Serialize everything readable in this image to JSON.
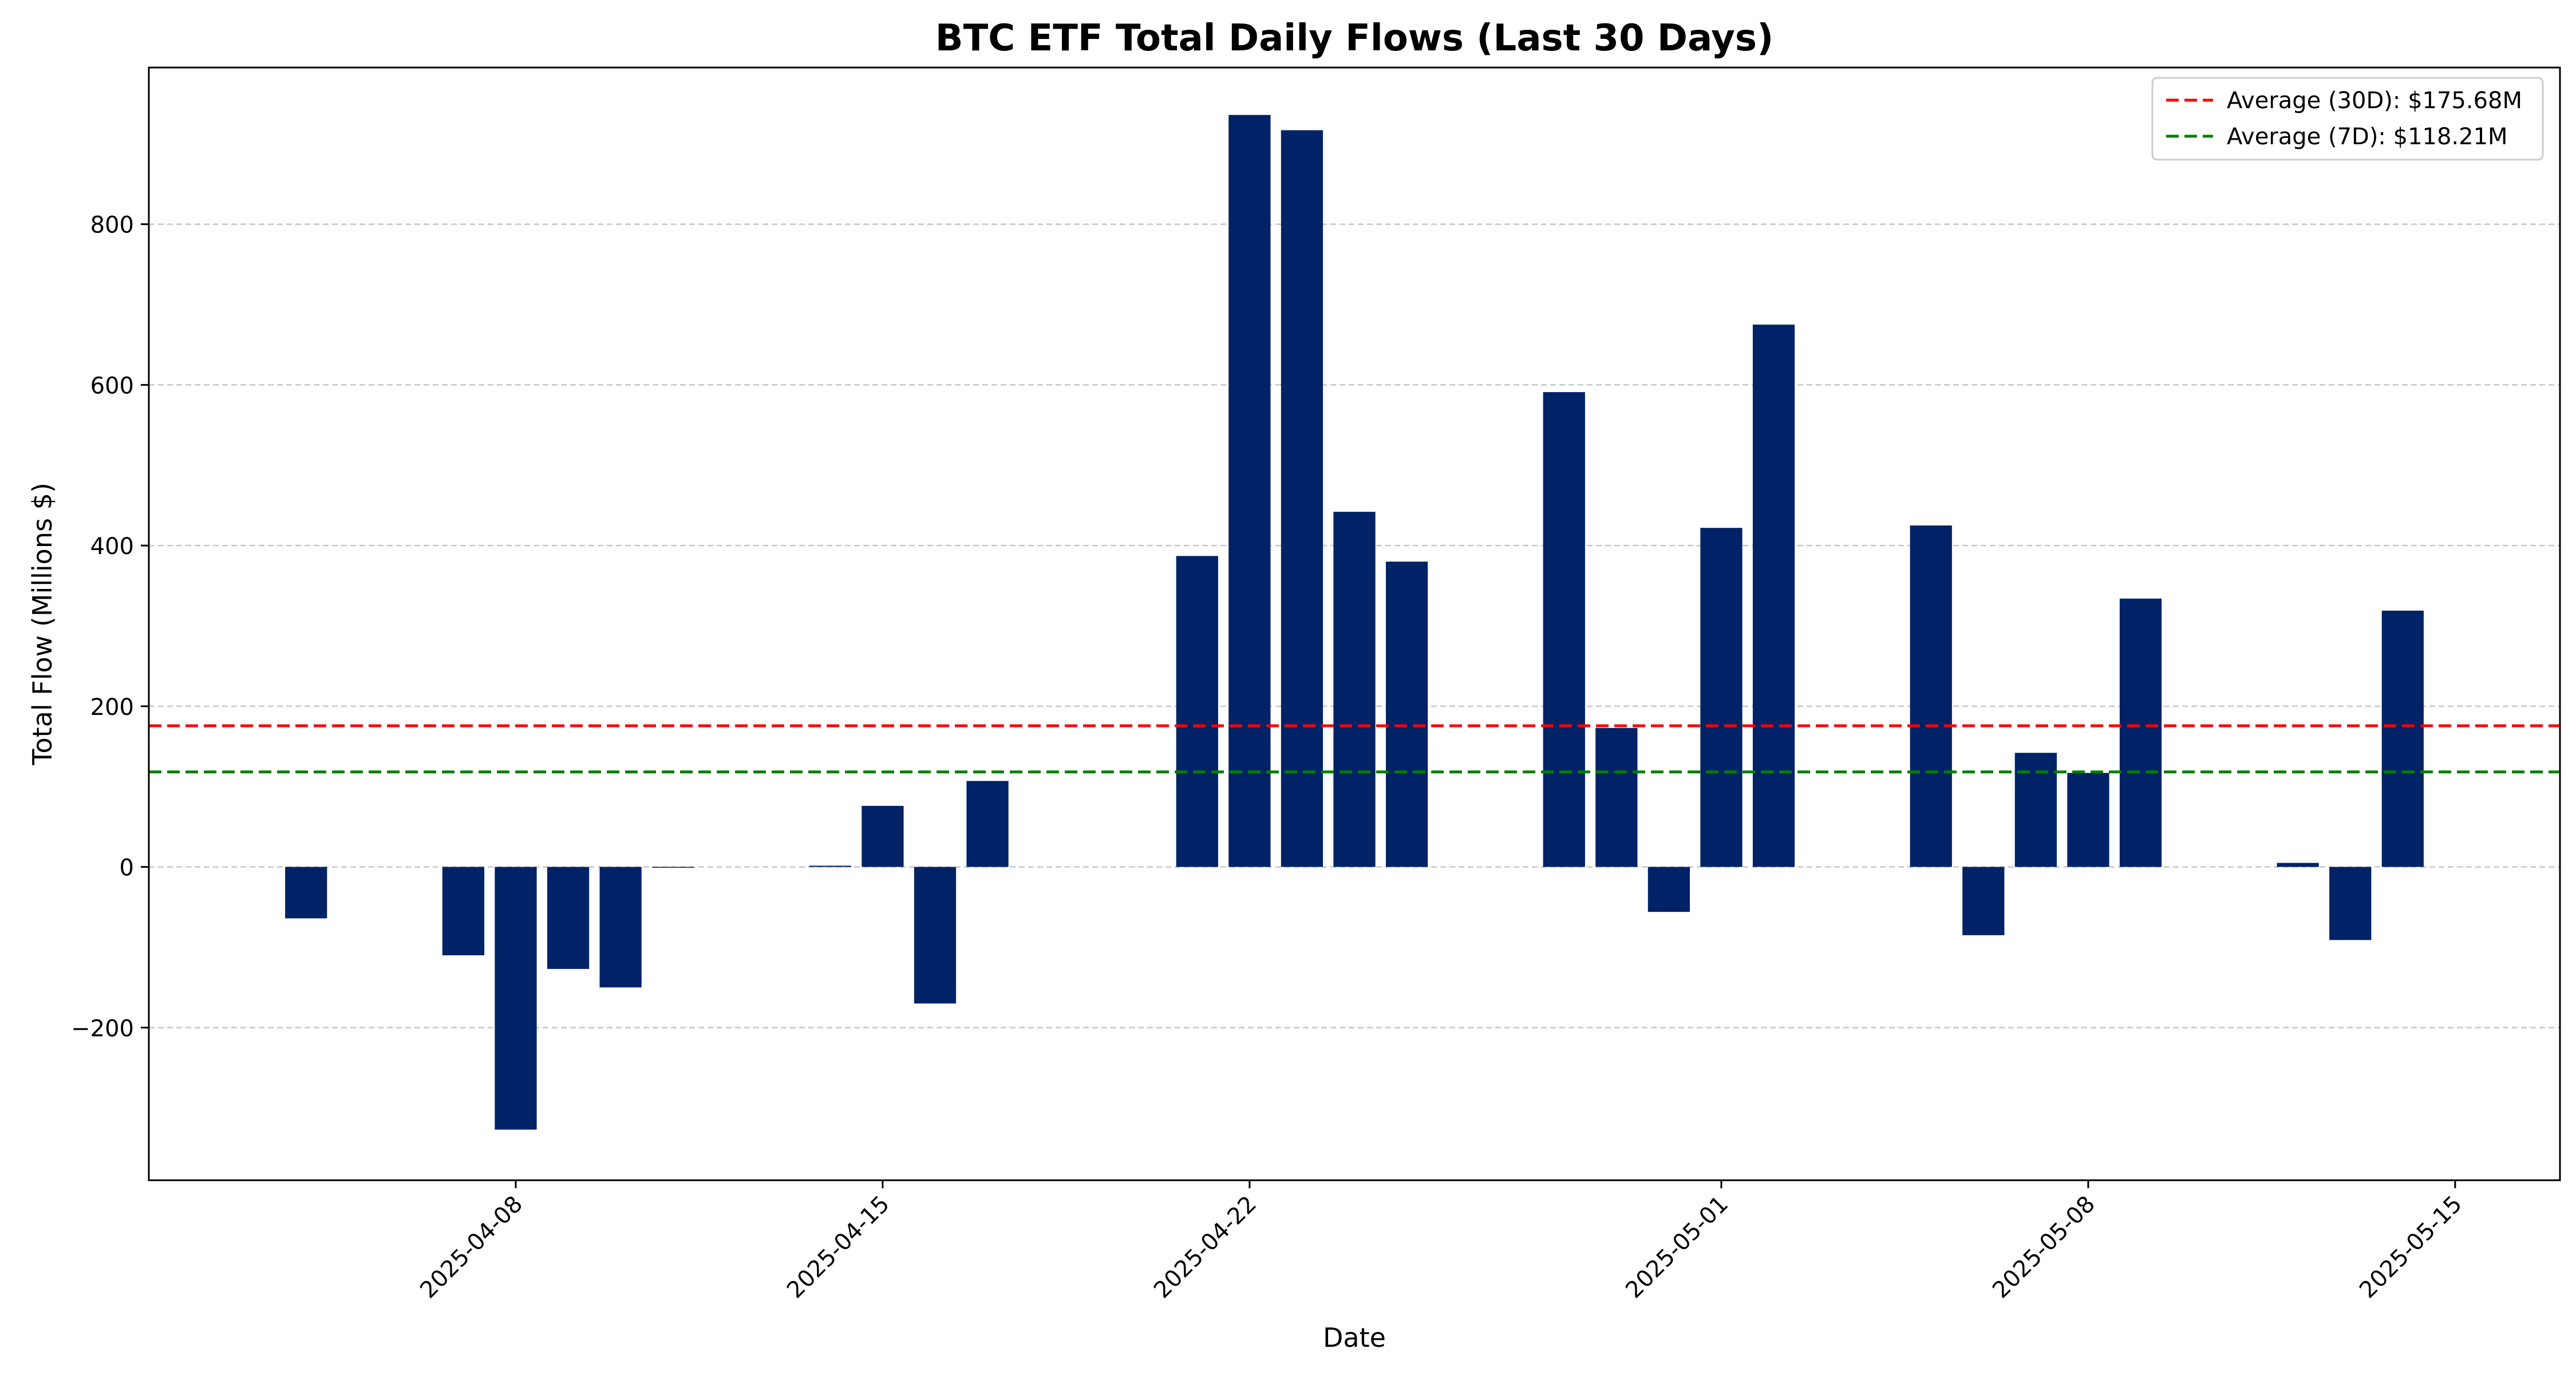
{
  "chart_data": {
    "type": "bar",
    "title": "BTC ETF Total Daily Flows (Last 30 Days)",
    "xlabel": "Date",
    "ylabel": "Total Flow (Millions $)",
    "x_tick_labels": [
      "2025-04-08",
      "2025-04-15",
      "2025-04-22",
      "2025-05-01",
      "2025-05-08",
      "2025-05-15"
    ],
    "y_ticks": [
      -200,
      0,
      200,
      400,
      600,
      800
    ],
    "y_tick_labels": [
      "−200",
      "0",
      "200",
      "400",
      "600",
      "800"
    ],
    "ylim": [
      -390,
      995
    ],
    "xlim": [
      "2025-04-01",
      "2025-05-17"
    ],
    "grid": "y-dashed",
    "legend_position": "top-right",
    "bar_color": "#002266",
    "x": [
      "2025-04-04",
      "2025-04-07",
      "2025-04-08",
      "2025-04-09",
      "2025-04-10",
      "2025-04-11",
      "2025-04-14",
      "2025-04-15",
      "2025-04-16",
      "2025-04-17",
      "2025-04-21",
      "2025-04-22",
      "2025-04-23",
      "2025-04-24",
      "2025-04-25",
      "2025-04-28",
      "2025-04-29",
      "2025-04-30",
      "2025-05-01",
      "2025-05-02",
      "2025-05-05",
      "2025-05-06",
      "2025-05-07",
      "2025-05-08",
      "2025-05-09",
      "2025-05-12",
      "2025-05-13",
      "2025-05-14"
    ],
    "values": [
      -64,
      -110,
      -327,
      -127,
      -150,
      -1,
      1.5,
      76,
      -170,
      107,
      387,
      936,
      917,
      442,
      380,
      591,
      173,
      -56,
      422,
      675,
      425,
      -85,
      142,
      117,
      334,
      5,
      -91,
      319
    ],
    "reference_lines": [
      {
        "label": "Average (30D): $175.68M",
        "value": 175.68,
        "color": "#ff0000"
      },
      {
        "label": "Average (7D): $118.21M",
        "value": 118.21,
        "color": "#008000"
      }
    ]
  }
}
